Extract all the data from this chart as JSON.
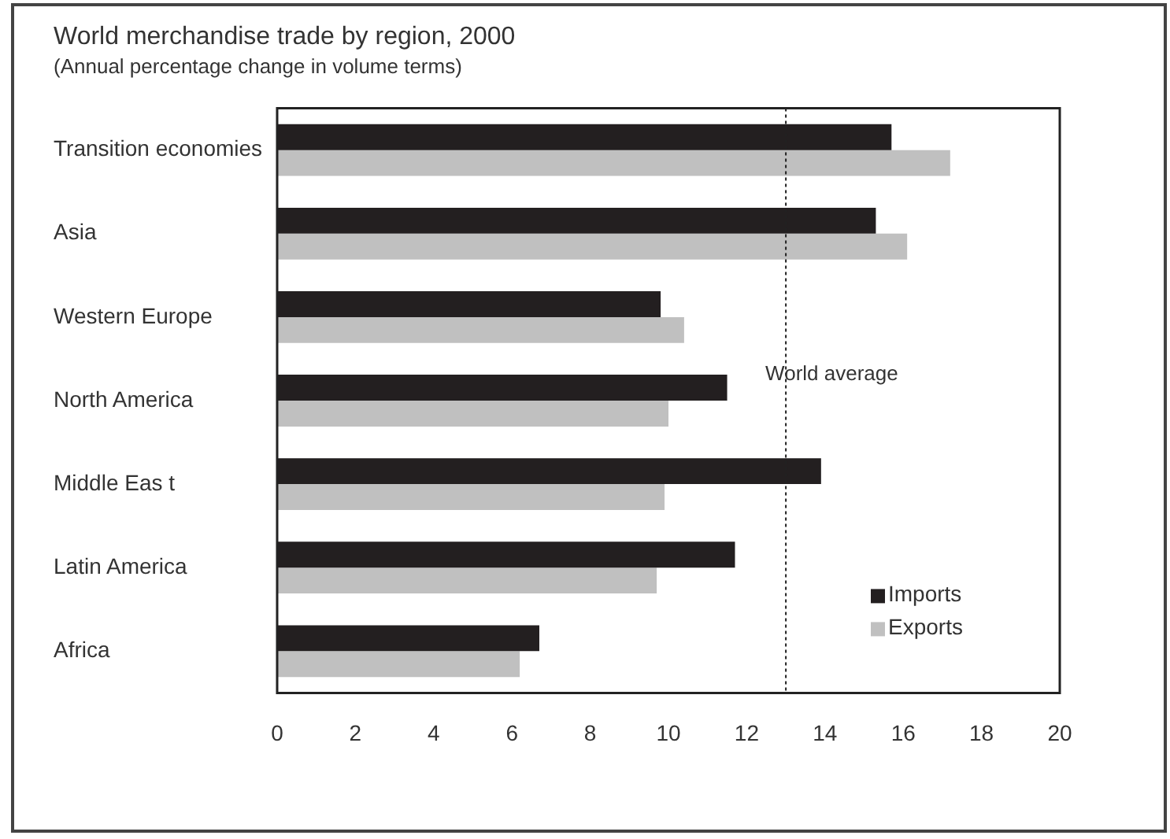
{
  "chart_data": {
    "type": "bar",
    "orientation": "horizontal",
    "title": "World merchandise trade by region, 2000",
    "subtitle": "(Annual percentage change in volume terms)",
    "categories": [
      "Transition economies",
      "Asia",
      "Western Europe",
      "North America",
      "Middle Eas t",
      "Latin America",
      "Africa"
    ],
    "series": [
      {
        "name": "Imports",
        "color": "#231f20",
        "values": [
          15.7,
          15.3,
          9.8,
          11.5,
          13.9,
          11.7,
          6.7
        ]
      },
      {
        "name": "Exports",
        "color": "#c0c0c0",
        "values": [
          17.2,
          16.1,
          10.4,
          10.0,
          9.9,
          9.7,
          6.2
        ]
      }
    ],
    "xlim": [
      0,
      20
    ],
    "xticks": [
      0,
      2,
      4,
      6,
      8,
      10,
      12,
      14,
      16,
      18,
      20
    ],
    "ref_lines": [
      {
        "axis": "x",
        "value": 13,
        "label": "World average",
        "line_style": "dotted"
      }
    ],
    "grid": false,
    "legend": "bottom right"
  }
}
